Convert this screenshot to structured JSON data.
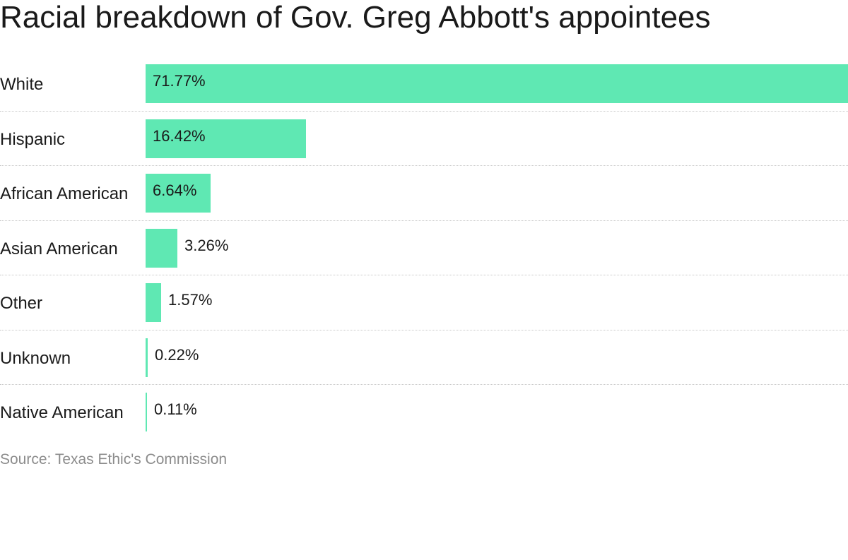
{
  "chart_data": {
    "type": "bar",
    "orientation": "horizontal",
    "title": "Racial breakdown of Gov. Greg Abbott's appointees",
    "categories": [
      "White",
      "Hispanic",
      "African American",
      "Asian American",
      "Other",
      "Unknown",
      "Native American"
    ],
    "values": [
      71.77,
      16.42,
      6.64,
      3.26,
      1.57,
      0.22,
      0.11
    ],
    "value_labels": [
      "71.77%",
      "16.42%",
      "6.64%",
      "3.26%",
      "1.57%",
      "0.22%",
      "0.11%"
    ],
    "xlim": [
      0,
      71.77
    ],
    "grid": false,
    "legend": "none",
    "bar_color": "#5fe8b3",
    "source": "Source: Texas Ethic's Commission"
  }
}
